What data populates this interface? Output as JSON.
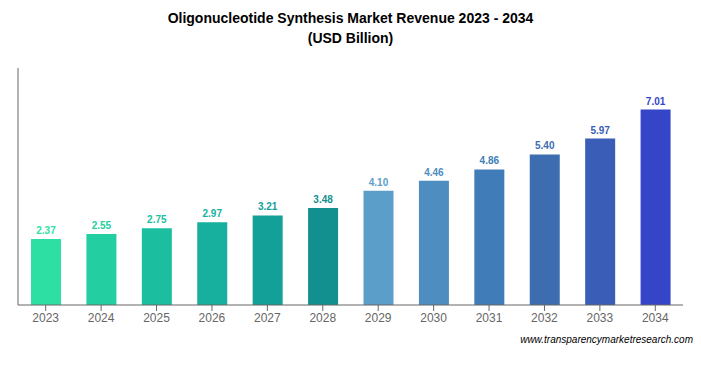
{
  "chart_data": {
    "type": "bar",
    "title": "Oligonucleotide Synthesis Market Revenue 2023 - 2034",
    "subtitle": "(USD Billion)",
    "categories": [
      "2023",
      "2024",
      "2025",
      "2026",
      "2027",
      "2028",
      "2029",
      "2030",
      "2031",
      "2032",
      "2033",
      "2034"
    ],
    "values": [
      2.37,
      2.55,
      2.75,
      2.97,
      3.21,
      3.48,
      4.1,
      4.46,
      4.86,
      5.4,
      5.97,
      7.01
    ],
    "value_labels": [
      "2.37",
      "2.55",
      "2.75",
      "2.97",
      "3.21",
      "3.48",
      "4.10",
      "4.46",
      "4.86",
      "5.40",
      "5.97",
      "7.01"
    ],
    "colors": [
      "#2EDFA3",
      "#23CFA0",
      "#1BBFA0",
      "#17B09E",
      "#13A098",
      "#128F8F",
      "#5B9EC9",
      "#4D8DC0",
      "#407DB8",
      "#3D6DB0",
      "#3A5DB8",
      "#3545C8"
    ],
    "data_labels": true,
    "ylim": [
      0,
      8.5
    ],
    "yticks": [],
    "grid": false,
    "tick_labels": "x",
    "annotations": [
      "www.transparencymarketresearch.com"
    ]
  }
}
